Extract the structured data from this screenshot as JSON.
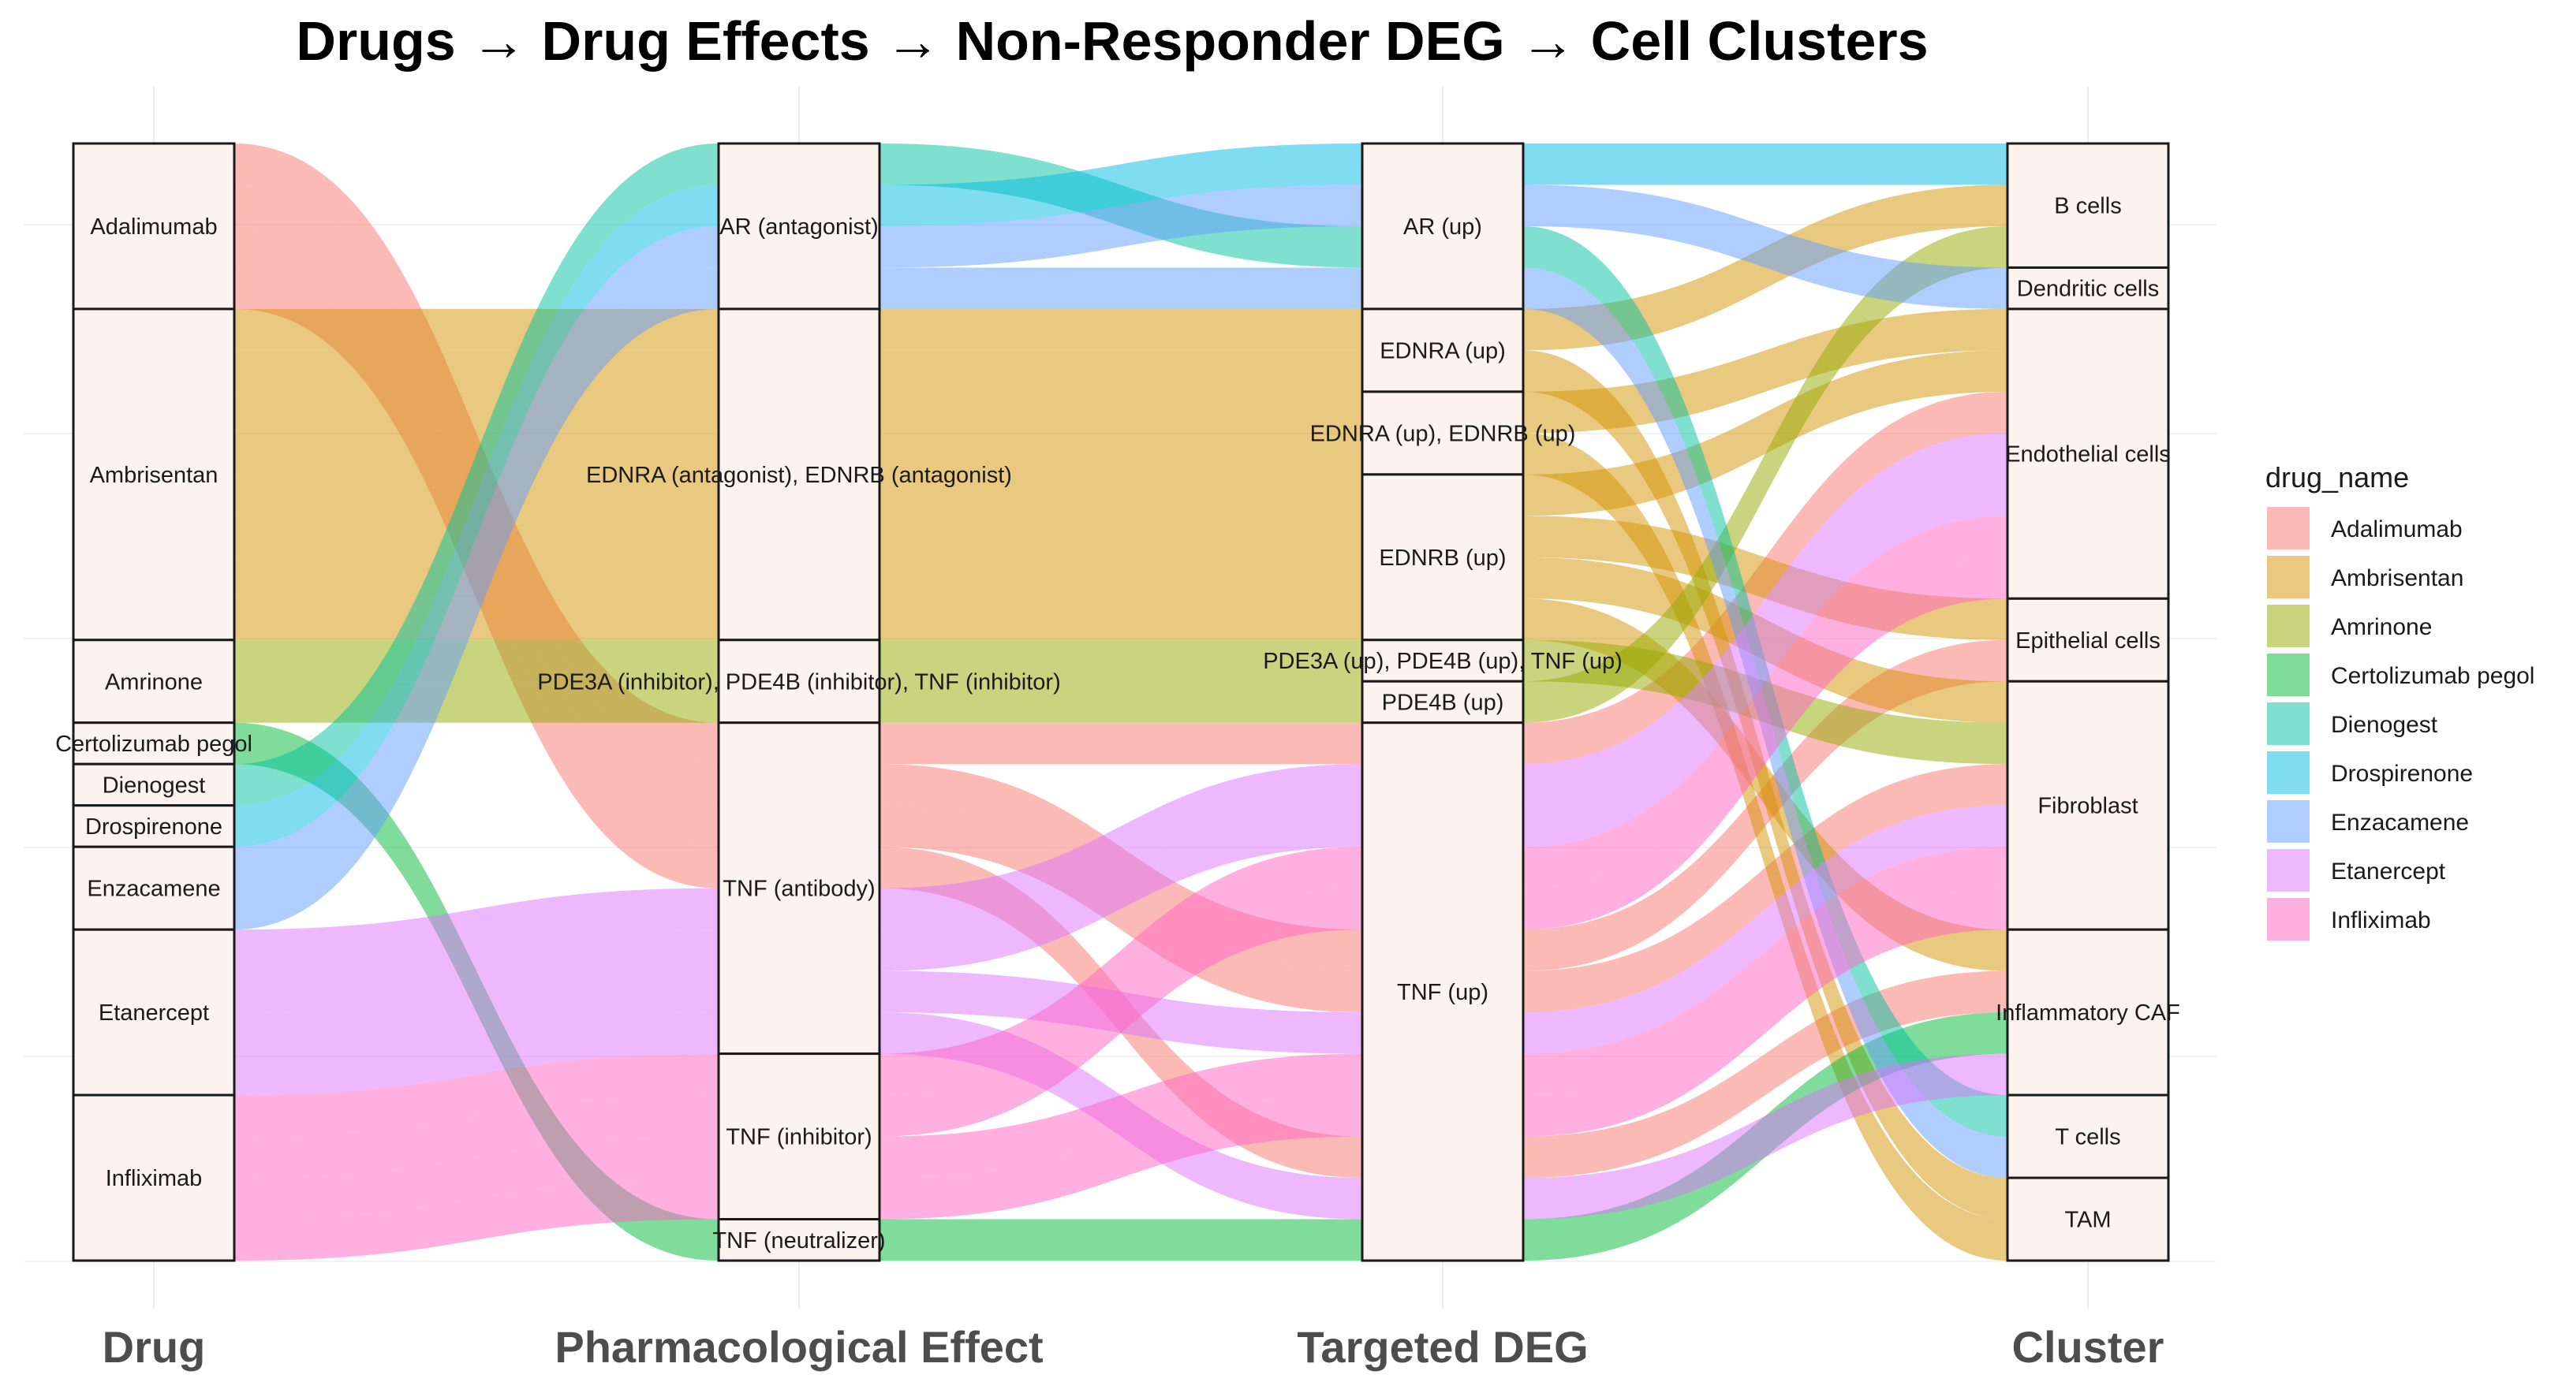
{
  "chart_data": {
    "type": "alluvial",
    "title": "Drugs → Drug Effects → Non-Responder DEG → Cell Clusters",
    "axes": [
      {
        "label": "Drug",
        "strata": [
          "Adalimumab",
          "Ambrisentan",
          "Amrinone",
          "Certolizumab pegol",
          "Dienogest",
          "Drospirenone",
          "Enzacamene",
          "Etanercept",
          "Infliximab"
        ]
      },
      {
        "label": "Pharmacological Effect",
        "strata": [
          "AR (antagonist)",
          "EDNRA (antagonist), EDNRB (antagonist)",
          "PDE3A (inhibitor), PDE4B (inhibitor), TNF (inhibitor)",
          "TNF (antibody)",
          "TNF (inhibitor)",
          "TNF (neutralizer)"
        ]
      },
      {
        "label": "Targeted DEG",
        "strata": [
          "AR (up)",
          "EDNRA (up)",
          "EDNRA (up), EDNRB (up)",
          "EDNRB (up)",
          "PDE3A (up), PDE4B (up), TNF (up)",
          "PDE4B (up)",
          "TNF (up)"
        ]
      },
      {
        "label": "Cluster",
        "strata": [
          "B cells",
          "Dendritic cells",
          "Endothelial cells",
          "Epithelial cells",
          "Fibroblast",
          "Inflammatory CAF",
          "T cells",
          "TAM"
        ]
      }
    ],
    "legend": {
      "title": "drug_name",
      "position": "right",
      "items": [
        {
          "label": "Adalimumab",
          "color": "#F8766D"
        },
        {
          "label": "Ambrisentan",
          "color": "#D39200"
        },
        {
          "label": "Amrinone",
          "color": "#93AA00"
        },
        {
          "label": "Certolizumab pegol",
          "color": "#00BA38"
        },
        {
          "label": "Dienogest",
          "color": "#00C19F"
        },
        {
          "label": "Drospirenone",
          "color": "#00B9E3"
        },
        {
          "label": "Enzacamene",
          "color": "#619CFF"
        },
        {
          "label": "Etanercept",
          "color": "#DB72FB"
        },
        {
          "label": "Infliximab",
          "color": "#FF61C3"
        }
      ]
    },
    "flow_opacity": 0.5,
    "alluvia": [
      [
        "Adalimumab",
        "TNF (antibody)",
        "TNF (up)",
        "Endothelial cells"
      ],
      [
        "Adalimumab",
        "TNF (antibody)",
        "TNF (up)",
        "Epithelial cells"
      ],
      [
        "Adalimumab",
        "TNF (antibody)",
        "TNF (up)",
        "Fibroblast"
      ],
      [
        "Adalimumab",
        "TNF (antibody)",
        "TNF (up)",
        "Inflammatory CAF"
      ],
      [
        "Ambrisentan",
        "EDNRA (antagonist), EDNRB (antagonist)",
        "EDNRA (up)",
        "B cells"
      ],
      [
        "Ambrisentan",
        "EDNRA (antagonist), EDNRB (antagonist)",
        "EDNRA (up)",
        "TAM"
      ],
      [
        "Ambrisentan",
        "EDNRA (antagonist), EDNRB (antagonist)",
        "EDNRA (up), EDNRB (up)",
        "Endothelial cells"
      ],
      [
        "Ambrisentan",
        "EDNRA (antagonist), EDNRB (antagonist)",
        "EDNRA (up), EDNRB (up)",
        "TAM"
      ],
      [
        "Ambrisentan",
        "EDNRA (antagonist), EDNRB (antagonist)",
        "EDNRB (up)",
        "Endothelial cells"
      ],
      [
        "Ambrisentan",
        "EDNRA (antagonist), EDNRB (antagonist)",
        "EDNRB (up)",
        "Epithelial cells"
      ],
      [
        "Ambrisentan",
        "EDNRA (antagonist), EDNRB (antagonist)",
        "EDNRB (up)",
        "Fibroblast"
      ],
      [
        "Ambrisentan",
        "EDNRA (antagonist), EDNRB (antagonist)",
        "EDNRB (up)",
        "Inflammatory CAF"
      ],
      [
        "Amrinone",
        "PDE3A (inhibitor), PDE4B (inhibitor), TNF (inhibitor)",
        "PDE3A (up), PDE4B (up), TNF (up)",
        "Fibroblast"
      ],
      [
        "Amrinone",
        "PDE3A (inhibitor), PDE4B (inhibitor), TNF (inhibitor)",
        "PDE4B (up)",
        "B cells"
      ],
      [
        "Certolizumab pegol",
        "TNF (neutralizer)",
        "TNF (up)",
        "Inflammatory CAF"
      ],
      [
        "Dienogest",
        "AR (antagonist)",
        "AR (up)",
        "T cells"
      ],
      [
        "Drospirenone",
        "AR (antagonist)",
        "AR (up)",
        "B cells"
      ],
      [
        "Enzacamene",
        "AR (antagonist)",
        "AR (up)",
        "Dendritic cells"
      ],
      [
        "Enzacamene",
        "AR (antagonist)",
        "AR (up)",
        "T cells"
      ],
      [
        "Etanercept",
        "TNF (antibody)",
        "TNF (up)",
        "Endothelial cells"
      ],
      [
        "Etanercept",
        "TNF (antibody)",
        "TNF (up)",
        "Endothelial cells"
      ],
      [
        "Etanercept",
        "TNF (antibody)",
        "TNF (up)",
        "Fibroblast"
      ],
      [
        "Etanercept",
        "TNF (antibody)",
        "TNF (up)",
        "Inflammatory CAF"
      ],
      [
        "Infliximab",
        "TNF (inhibitor)",
        "TNF (up)",
        "Endothelial cells"
      ],
      [
        "Infliximab",
        "TNF (inhibitor)",
        "TNF (up)",
        "Endothelial cells"
      ],
      [
        "Infliximab",
        "TNF (inhibitor)",
        "TNF (up)",
        "Fibroblast"
      ],
      [
        "Infliximab",
        "TNF (inhibitor)",
        "TNF (up)",
        "Fibroblast"
      ]
    ]
  }
}
